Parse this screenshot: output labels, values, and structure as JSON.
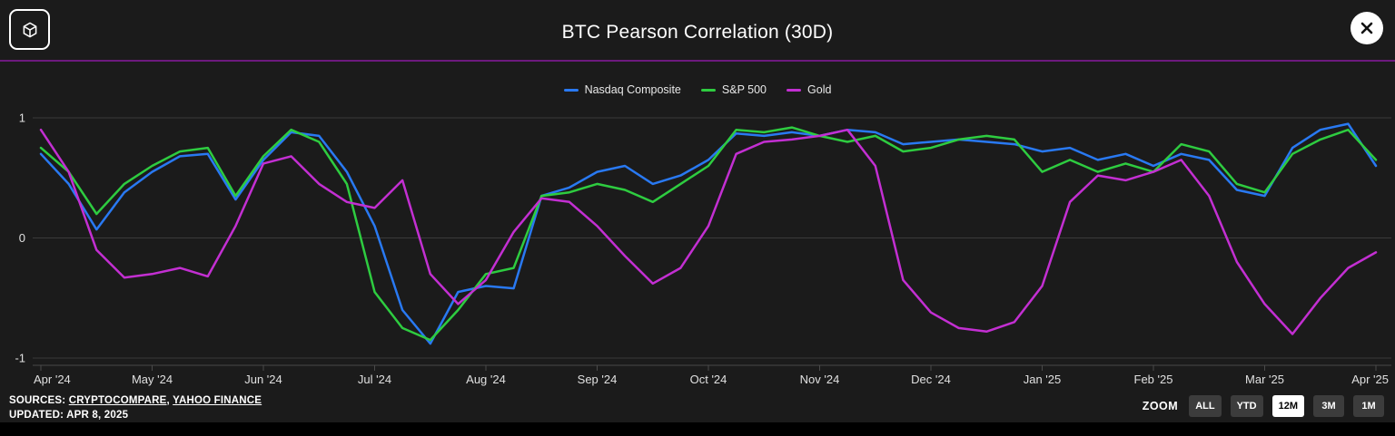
{
  "header": {
    "title": "BTC Pearson Correlation (30D)",
    "logo_icon": "cube-logo-icon",
    "close_icon": "close-x-icon"
  },
  "colors": {
    "background": "#1b1b1b",
    "divider": "#6d1a7e",
    "grid": "#3a3a3a",
    "axis": "#4a4a4a",
    "nasdaq": "#2979f2",
    "sp500": "#2ecc40",
    "gold": "#c32fd2"
  },
  "legend": {
    "items": [
      {
        "label": "Nasdaq Composite",
        "color": "#2979f2"
      },
      {
        "label": "S&P 500",
        "color": "#2ecc40"
      },
      {
        "label": "Gold",
        "color": "#c32fd2"
      }
    ]
  },
  "chart_data": {
    "type": "line",
    "title": "BTC Pearson Correlation (30D)",
    "ylabel": "",
    "xlabel": "",
    "ylim": [
      -1,
      1
    ],
    "yticks": [
      1,
      0,
      -1
    ],
    "grid": true,
    "legend_position": "top-center",
    "categories": [
      "Apr '24",
      "May '24",
      "Jun '24",
      "Jul '24",
      "Aug '24",
      "Sep '24",
      "Oct '24",
      "Nov '24",
      "Dec '24",
      "Jan '25",
      "Feb '25",
      "Mar '25",
      "Apr '25"
    ],
    "x_months": [
      0,
      0.25,
      0.5,
      0.75,
      1,
      1.25,
      1.5,
      1.75,
      2,
      2.25,
      2.5,
      2.75,
      3,
      3.25,
      3.5,
      3.75,
      4,
      4.25,
      4.5,
      4.75,
      5,
      5.25,
      5.5,
      5.75,
      6,
      6.25,
      6.5,
      6.75,
      7,
      7.25,
      7.5,
      7.75,
      8,
      8.25,
      8.5,
      8.75,
      9,
      9.25,
      9.5,
      9.75,
      10,
      10.25,
      10.5,
      10.75,
      11,
      11.25,
      11.5,
      11.75,
      12
    ],
    "series": [
      {
        "name": "Nasdaq Composite",
        "color": "#2979f2",
        "values": [
          0.7,
          0.45,
          0.07,
          0.38,
          0.55,
          0.68,
          0.7,
          0.32,
          0.65,
          0.88,
          0.85,
          0.55,
          0.1,
          -0.6,
          -0.88,
          -0.45,
          -0.4,
          -0.42,
          0.35,
          0.42,
          0.55,
          0.6,
          0.45,
          0.52,
          0.65,
          0.87,
          0.85,
          0.88,
          0.85,
          0.9,
          0.88,
          0.78,
          0.8,
          0.82,
          0.8,
          0.78,
          0.72,
          0.75,
          0.65,
          0.7,
          0.6,
          0.7,
          0.65,
          0.4,
          0.35,
          0.75,
          0.9,
          0.95,
          0.6
        ]
      },
      {
        "name": "S&P 500",
        "color": "#2ecc40",
        "values": [
          0.75,
          0.55,
          0.2,
          0.45,
          0.6,
          0.72,
          0.75,
          0.35,
          0.68,
          0.9,
          0.8,
          0.45,
          -0.45,
          -0.75,
          -0.85,
          -0.6,
          -0.3,
          -0.25,
          0.35,
          0.38,
          0.45,
          0.4,
          0.3,
          0.45,
          0.6,
          0.9,
          0.88,
          0.92,
          0.85,
          0.8,
          0.85,
          0.72,
          0.75,
          0.82,
          0.85,
          0.82,
          0.55,
          0.65,
          0.55,
          0.62,
          0.55,
          0.78,
          0.72,
          0.45,
          0.38,
          0.7,
          0.82,
          0.9,
          0.65
        ]
      },
      {
        "name": "Gold",
        "color": "#c32fd2",
        "values": [
          0.9,
          0.55,
          -0.1,
          -0.33,
          -0.3,
          -0.25,
          -0.32,
          0.1,
          0.62,
          0.68,
          0.45,
          0.3,
          0.25,
          0.48,
          -0.3,
          -0.55,
          -0.35,
          0.05,
          0.33,
          0.3,
          0.1,
          -0.15,
          -0.38,
          -0.25,
          0.1,
          0.7,
          0.8,
          0.82,
          0.85,
          0.9,
          0.6,
          -0.35,
          -0.62,
          -0.75,
          -0.78,
          -0.7,
          -0.4,
          0.3,
          0.52,
          0.48,
          0.55,
          0.65,
          0.35,
          -0.2,
          -0.55,
          -0.8,
          -0.5,
          -0.25,
          -0.12
        ]
      }
    ]
  },
  "footer": {
    "sources_label": "SOURCES:",
    "sources": [
      {
        "label": "CRYPTOCOMPARE"
      },
      {
        "label": "YAHOO FINANCE"
      }
    ],
    "updated": "UPDATED: APR 8, 2025",
    "zoom_label": "ZOOM",
    "zoom_buttons": [
      {
        "label": "ALL",
        "selected": false
      },
      {
        "label": "YTD",
        "selected": false
      },
      {
        "label": "12M",
        "selected": true
      },
      {
        "label": "3M",
        "selected": false
      },
      {
        "label": "1M",
        "selected": false
      }
    ]
  }
}
